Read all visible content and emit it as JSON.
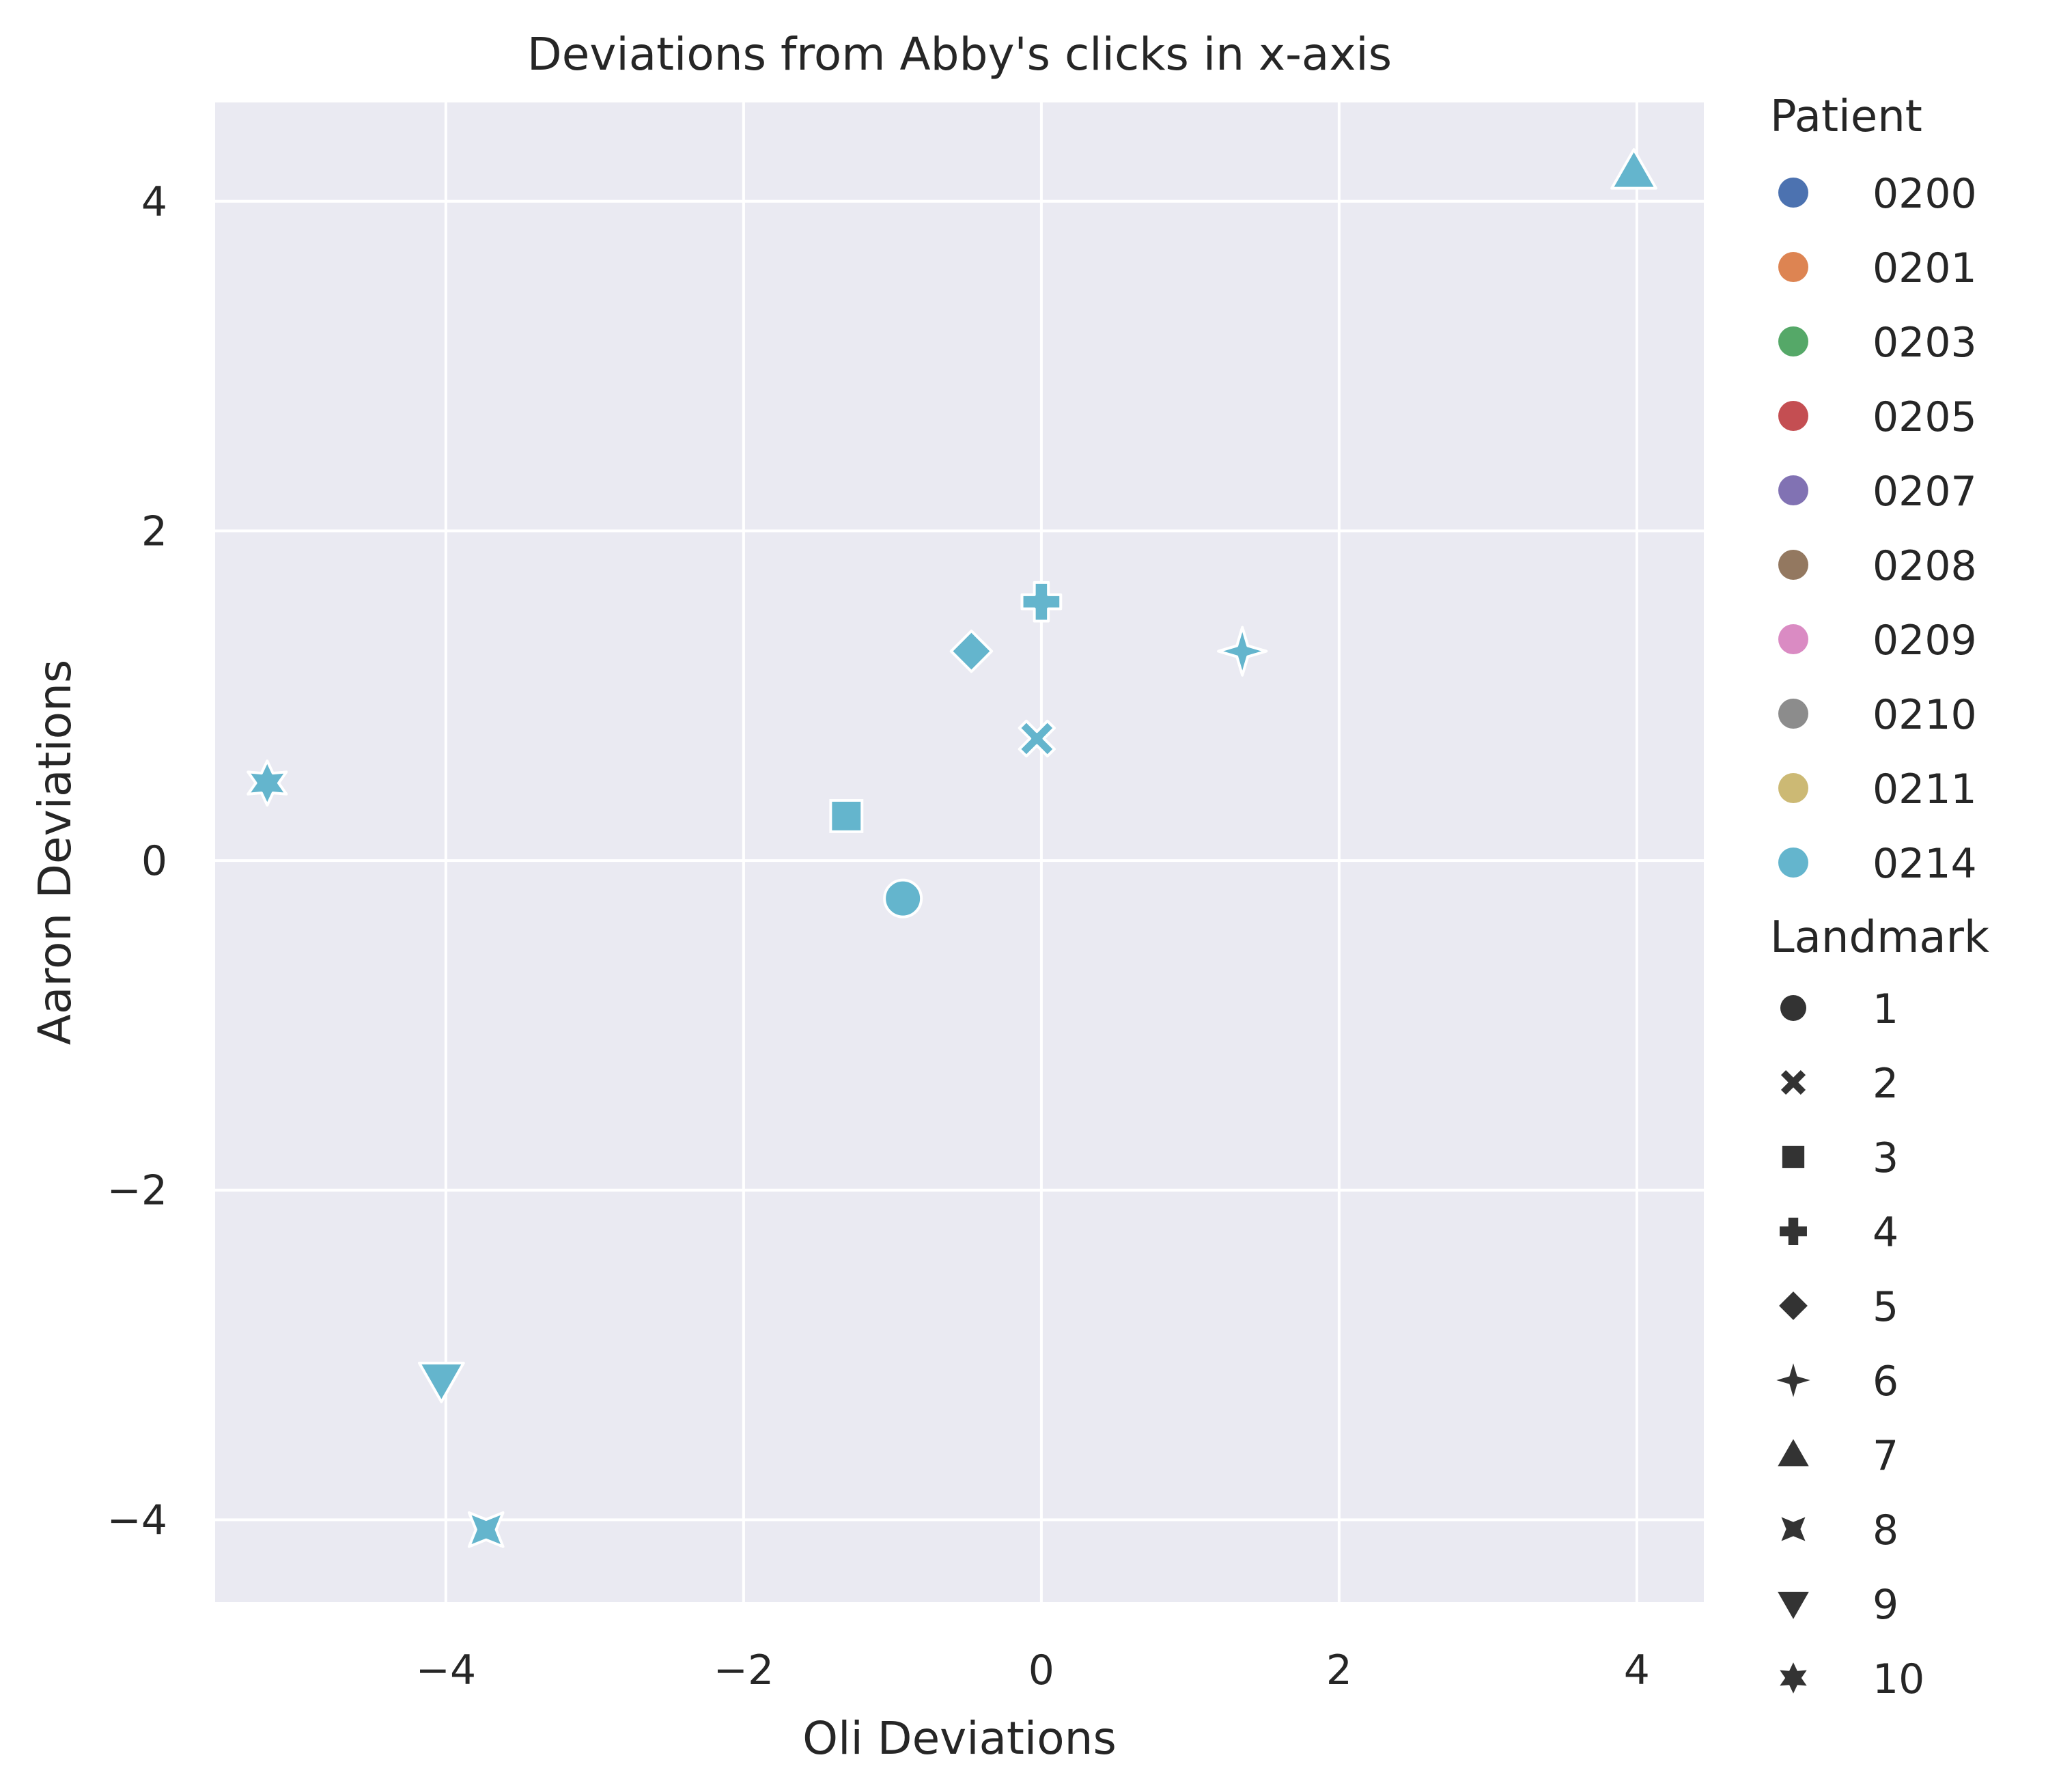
{
  "chart_data": {
    "type": "scatter",
    "title": "Deviations from Abby's clicks in x-axis",
    "xlabel": "Oli Deviations",
    "ylabel": "Aaron Deviations",
    "xlim": [
      -5.55,
      4.45
    ],
    "ylim": [
      -4.5,
      4.6
    ],
    "xticks": [
      -4,
      -2,
      0,
      2,
      4
    ],
    "yticks": [
      -4,
      -2,
      0,
      2,
      4
    ],
    "xtick_labels": [
      "−4",
      "−2",
      "0",
      "2",
      "4"
    ],
    "ytick_labels": [
      "−4",
      "−2",
      "0",
      "2",
      "4"
    ],
    "grid": true,
    "legend_position": "outside-right",
    "hue_legend": {
      "title": "Patient",
      "entries": [
        {
          "label": "0200",
          "color": "#4c72b0"
        },
        {
          "label": "0201",
          "color": "#dd8452"
        },
        {
          "label": "0203",
          "color": "#55a868"
        },
        {
          "label": "0205",
          "color": "#c44e52"
        },
        {
          "label": "0207",
          "color": "#8172b3"
        },
        {
          "label": "0208",
          "color": "#937860"
        },
        {
          "label": "0209",
          "color": "#da8bc3"
        },
        {
          "label": "0210",
          "color": "#8c8c8c"
        },
        {
          "label": "0211",
          "color": "#ccb974"
        },
        {
          "label": "0214",
          "color": "#64b5cd"
        }
      ]
    },
    "style_legend": {
      "title": "Landmark",
      "entries": [
        {
          "label": "1",
          "marker": "circle"
        },
        {
          "label": "2",
          "marker": "x"
        },
        {
          "label": "3",
          "marker": "square"
        },
        {
          "label": "4",
          "marker": "plus"
        },
        {
          "label": "5",
          "marker": "diamond"
        },
        {
          "label": "6",
          "marker": "star4"
        },
        {
          "label": "7",
          "marker": "triangle-up"
        },
        {
          "label": "8",
          "marker": "star4-diag"
        },
        {
          "label": "9",
          "marker": "triangle-down"
        },
        {
          "label": "10",
          "marker": "star6"
        }
      ]
    },
    "points": [
      {
        "patient": "0214",
        "landmark": "1",
        "x": -0.93,
        "y": -0.23
      },
      {
        "patient": "0214",
        "landmark": "2",
        "x": -0.03,
        "y": 0.74
      },
      {
        "patient": "0214",
        "landmark": "3",
        "x": -1.31,
        "y": 0.27
      },
      {
        "patient": "0214",
        "landmark": "4",
        "x": 0.0,
        "y": 1.57
      },
      {
        "patient": "0214",
        "landmark": "5",
        "x": -0.47,
        "y": 1.27
      },
      {
        "patient": "0214",
        "landmark": "6",
        "x": 1.35,
        "y": 1.27
      },
      {
        "patient": "0214",
        "landmark": "7",
        "x": 3.98,
        "y": 4.18
      },
      {
        "patient": "0214",
        "landmark": "8",
        "x": -3.73,
        "y": -4.06
      },
      {
        "patient": "0214",
        "landmark": "9",
        "x": -4.03,
        "y": -3.15
      },
      {
        "patient": "0214",
        "landmark": "10",
        "x": -5.2,
        "y": 0.47
      }
    ]
  }
}
